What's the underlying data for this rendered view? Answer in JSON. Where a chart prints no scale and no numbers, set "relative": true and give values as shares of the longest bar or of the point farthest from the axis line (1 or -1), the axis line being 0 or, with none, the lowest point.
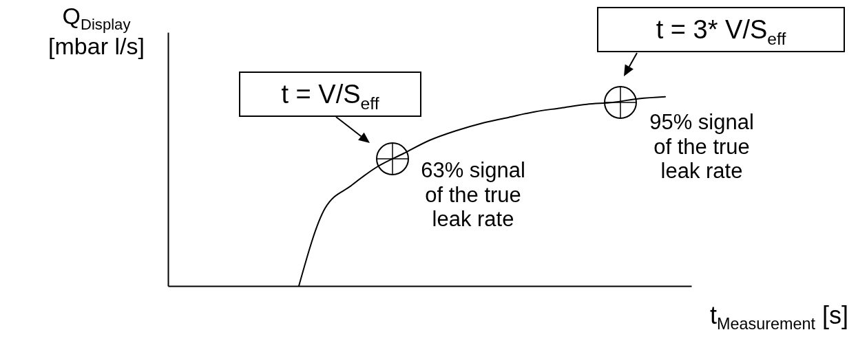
{
  "chart_data": {
    "type": "line",
    "relative": true,
    "xlabel": "t$_{Measurement}$ [s]",
    "ylabel": "Q$_{Display}$\n[mbar l/s]",
    "categories": [
      null,
      null,
      null,
      null,
      null,
      null,
      null,
      null,
      null,
      null,
      null,
      null,
      null,
      null,
      null,
      null,
      null,
      null,
      null,
      null,
      null
    ],
    "series": [
      {
        "color": "#000000",
        "values": [
          null,
          null,
          null,
          null,
          null,
          0,
          0.41,
          0.53,
          0.63,
          0.7,
          0.77,
          0.82,
          0.86,
          0.89,
          0.92,
          0.94,
          0.96,
          0.97,
          0.99,
          1.0,
          null
        ]
      }
    ],
    "annotations": [
      "t = V/S$_{eff}$",
      "t = 3* V/S$_{eff}$",
      "63% signal\nof the true\nleak rate",
      "95% signal\nof the true\nleak rate"
    ]
  }
}
